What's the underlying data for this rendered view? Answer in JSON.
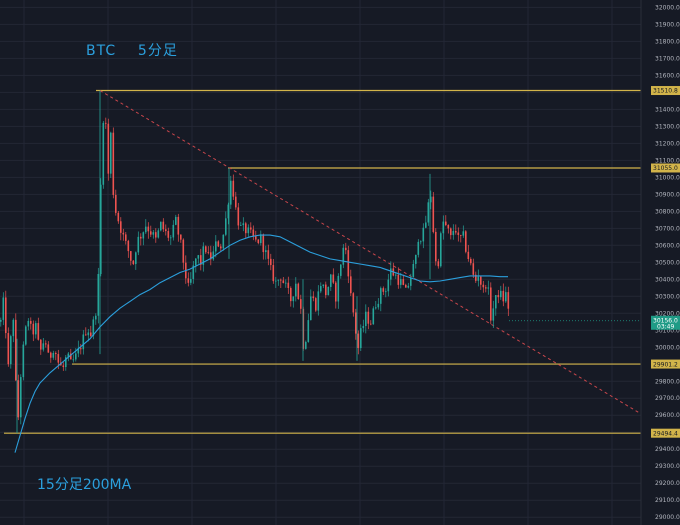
{
  "annotations": {
    "title": "BTC    5分足",
    "ma_label": "15分足200MA"
  },
  "colors": {
    "background": "#161a25",
    "grid": "#232735",
    "candle_up": "#26a69a",
    "candle_down": "#ef5350",
    "ma_line": "#2b9fdc",
    "level_line": "#d2b44a",
    "trend_line": "#c8464b",
    "current_price_tag": "#1f9b86"
  },
  "chart_data": {
    "type": "candlestick",
    "symbol": "BTC",
    "timeframe": "5分足",
    "y_axis": {
      "position": "right",
      "ylim": [
        28960,
        32020
      ],
      "ticks": [
        32000,
        31900,
        31800,
        31700,
        31600,
        31500,
        31400,
        31300,
        31200,
        31100,
        31000,
        30900,
        30800,
        30700,
        30600,
        30500,
        30400,
        30300,
        30200,
        30100,
        30000,
        29900,
        29800,
        29700,
        29600,
        29500,
        29400,
        29300,
        29200,
        29100,
        29000
      ],
      "tick_labels": [
        "32000.0",
        "31900.0",
        "31800.0",
        "31700.0",
        "31600.0",
        "31500.0",
        "31400.0",
        "31300.0",
        "31200.0",
        "31100.0",
        "31000.0",
        "30900.0",
        "30800.0",
        "30700.0",
        "30600.0",
        "30500.0",
        "30400.0",
        "30300.0",
        "30200.0",
        "30100.0",
        "30000.0",
        "29900.0",
        "29800.0",
        "29700.0",
        "29600.0",
        "29500.0",
        "29400.0",
        "29300.0",
        "29200.0",
        "29100.0",
        "29000.0"
      ]
    },
    "grid": true,
    "horizontal_levels": [
      {
        "price": 31510.8,
        "label": "31510.8"
      },
      {
        "price": 31055.0,
        "label": "31055.0"
      },
      {
        "price": 29901.2,
        "label": "29901.2"
      },
      {
        "price": 29494.4,
        "label": "29494.4"
      }
    ],
    "current_price": {
      "price": 30156.0,
      "label": "30156.0",
      "countdown": "03:49"
    },
    "trend_line": {
      "style": "dashed",
      "from_price": 31510.8,
      "to_price": 29600.0
    },
    "close_path": [
      [
        0,
        30150
      ],
      [
        3,
        30280
      ],
      [
        6,
        30020
      ],
      [
        8,
        29830
      ],
      [
        12,
        30260
      ],
      [
        15,
        29780
      ],
      [
        17,
        29540
      ],
      [
        20,
        29840
      ],
      [
        23,
        30020
      ],
      [
        27,
        30180
      ],
      [
        31,
        30080
      ],
      [
        35,
        30120
      ],
      [
        39,
        29960
      ],
      [
        44,
        30060
      ],
      [
        48,
        29920
      ],
      [
        53,
        30010
      ],
      [
        58,
        29900
      ],
      [
        62,
        29870
      ],
      [
        66,
        29950
      ],
      [
        70,
        29900
      ],
      [
        74,
        29930
      ],
      [
        78,
        29980
      ],
      [
        82,
        30040
      ],
      [
        86,
        30120
      ],
      [
        90,
        30080
      ],
      [
        94,
        30180
      ],
      [
        97,
        30300
      ],
      [
        100,
        30950
      ],
      [
        102,
        31320
      ],
      [
        104,
        31460
      ],
      [
        106,
        31150
      ],
      [
        108,
        30980
      ],
      [
        110,
        31250
      ],
      [
        113,
        30850
      ],
      [
        116,
        30780
      ],
      [
        120,
        30700
      ],
      [
        124,
        30620
      ],
      [
        128,
        30560
      ],
      [
        132,
        30480
      ],
      [
        136,
        30620
      ],
      [
        140,
        30660
      ],
      [
        145,
        30720
      ],
      [
        150,
        30680
      ],
      [
        155,
        30630
      ],
      [
        160,
        30720
      ],
      [
        165,
        30670
      ],
      [
        170,
        30640
      ],
      [
        175,
        30740
      ],
      [
        180,
        30600
      ],
      [
        184,
        30450
      ],
      [
        188,
        30330
      ],
      [
        192,
        30450
      ],
      [
        196,
        30540
      ],
      [
        200,
        30500
      ],
      [
        204,
        30600
      ],
      [
        208,
        30520
      ],
      [
        212,
        30540
      ],
      [
        216,
        30620
      ],
      [
        220,
        30600
      ],
      [
        224,
        30700
      ],
      [
        227,
        30850
      ],
      [
        230,
        30980
      ],
      [
        233,
        30900
      ],
      [
        236,
        30770
      ],
      [
        240,
        30700
      ],
      [
        245,
        30690
      ],
      [
        250,
        30660
      ],
      [
        255,
        30620
      ],
      [
        260,
        30640
      ],
      [
        265,
        30550
      ],
      [
        270,
        30450
      ],
      [
        275,
        30380
      ],
      [
        280,
        30420
      ],
      [
        285,
        30350
      ],
      [
        290,
        30280
      ],
      [
        295,
        30380
      ],
      [
        300,
        30220
      ],
      [
        303,
        29980
      ],
      [
        306,
        30100
      ],
      [
        310,
        30300
      ],
      [
        315,
        30250
      ],
      [
        320,
        30380
      ],
      [
        325,
        30320
      ],
      [
        330,
        30400
      ],
      [
        335,
        30300
      ],
      [
        340,
        30500
      ],
      [
        344,
        30620
      ],
      [
        347,
        30480
      ],
      [
        350,
        30300
      ],
      [
        354,
        30150
      ],
      [
        357,
        29980
      ],
      [
        360,
        30080
      ],
      [
        365,
        30180
      ],
      [
        370,
        30150
      ],
      [
        375,
        30260
      ],
      [
        380,
        30320
      ],
      [
        385,
        30350
      ],
      [
        390,
        30450
      ],
      [
        395,
        30420
      ],
      [
        400,
        30380
      ],
      [
        405,
        30320
      ],
      [
        410,
        30420
      ],
      [
        415,
        30520
      ],
      [
        418,
        30680
      ],
      [
        421,
        30640
      ],
      [
        424,
        30700
      ],
      [
        427,
        30820
      ],
      [
        430,
        30900
      ],
      [
        433,
        30650
      ],
      [
        436,
        30420
      ],
      [
        439,
        30600
      ],
      [
        442,
        30740
      ],
      [
        446,
        30700
      ],
      [
        450,
        30640
      ],
      [
        454,
        30720
      ],
      [
        458,
        30620
      ],
      [
        462,
        30660
      ],
      [
        466,
        30560
      ],
      [
        470,
        30480
      ],
      [
        474,
        30380
      ],
      [
        478,
        30440
      ],
      [
        482,
        30320
      ],
      [
        486,
        30400
      ],
      [
        490,
        30180
      ],
      [
        494,
        30260
      ],
      [
        498,
        30330
      ],
      [
        502,
        30280
      ],
      [
        506,
        30320
      ],
      [
        509,
        30156
      ]
    ],
    "ma_path": [
      [
        15,
        29380
      ],
      [
        20,
        29480
      ],
      [
        25,
        29580
      ],
      [
        30,
        29670
      ],
      [
        35,
        29740
      ],
      [
        40,
        29790
      ],
      [
        50,
        29850
      ],
      [
        60,
        29900
      ],
      [
        70,
        29950
      ],
      [
        80,
        30000
      ],
      [
        90,
        30050
      ],
      [
        100,
        30120
      ],
      [
        110,
        30180
      ],
      [
        120,
        30230
      ],
      [
        130,
        30270
      ],
      [
        140,
        30310
      ],
      [
        150,
        30340
      ],
      [
        160,
        30380
      ],
      [
        170,
        30410
      ],
      [
        180,
        30440
      ],
      [
        190,
        30460
      ],
      [
        200,
        30490
      ],
      [
        210,
        30520
      ],
      [
        220,
        30560
      ],
      [
        230,
        30600
      ],
      [
        240,
        30630
      ],
      [
        250,
        30650
      ],
      [
        260,
        30660
      ],
      [
        270,
        30660
      ],
      [
        280,
        30650
      ],
      [
        290,
        30620
      ],
      [
        300,
        30590
      ],
      [
        310,
        30560
      ],
      [
        320,
        30540
      ],
      [
        330,
        30520
      ],
      [
        340,
        30510
      ],
      [
        350,
        30500
      ],
      [
        360,
        30490
      ],
      [
        370,
        30480
      ],
      [
        380,
        30470
      ],
      [
        390,
        30450
      ],
      [
        400,
        30430
      ],
      [
        410,
        30410
      ],
      [
        420,
        30390
      ],
      [
        430,
        30385
      ],
      [
        440,
        30390
      ],
      [
        450,
        30400
      ],
      [
        460,
        30410
      ],
      [
        470,
        30420
      ],
      [
        480,
        30420
      ],
      [
        490,
        30420
      ],
      [
        500,
        30415
      ],
      [
        508,
        30415
      ]
    ]
  }
}
